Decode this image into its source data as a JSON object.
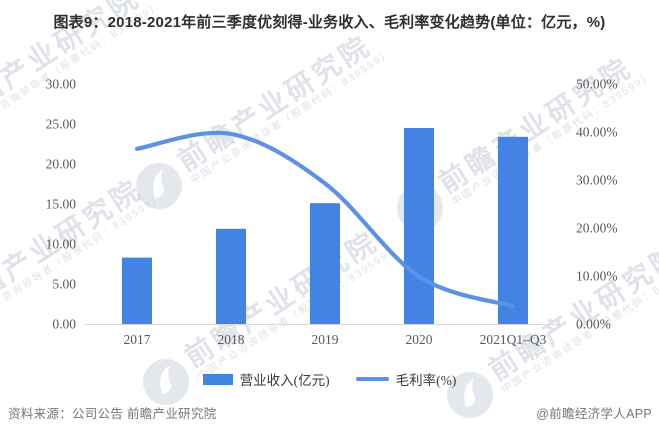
{
  "title": "图表9：2018-2021年前三季度优刻得-业务收入、毛利率变化趋势(单位：亿元，%)",
  "chart_data": {
    "type": "bar",
    "subtype": "bar-line-combo",
    "categories": [
      "2017",
      "2018",
      "2019",
      "2020",
      "2021Q1–Q3"
    ],
    "series": [
      {
        "name": "营业收入(亿元)",
        "type": "bar",
        "axis": "left",
        "color": "#4283E3",
        "values": [
          8.3,
          11.9,
          15.1,
          24.5,
          23.4
        ]
      },
      {
        "name": "毛利率(%)",
        "type": "line",
        "axis": "right",
        "color": "#5B92E8",
        "values": [
          36.5,
          39.6,
          29.3,
          9.9,
          3.7
        ]
      }
    ],
    "left_axis": {
      "min": 0,
      "max": 30,
      "step": 5,
      "tick_format": "0.00"
    },
    "right_axis": {
      "min": 0,
      "max": 50,
      "step": 10,
      "tick_format": "0.00%"
    },
    "grid": false,
    "legend_position": "bottom",
    "title": "图表9：2018-2021年前三季度优刻得-业务收入、毛利率变化趋势(单位：亿元，%)"
  },
  "legend": {
    "items": [
      {
        "label": "营业收入(亿元)",
        "swatch": "bar"
      },
      {
        "label": "毛利率(%)",
        "swatch": "line"
      }
    ]
  },
  "footer": {
    "source": "资料来源：公司公告 前瞻产业研究院",
    "credit": "@前瞻经济学人APP"
  },
  "watermark": {
    "big_text": "前瞻产业研究院",
    "small_text": "中国产业咨询领导者（股票代码：839599）"
  },
  "colors": {
    "bar": "#4283E3",
    "line": "#5B92E8",
    "title_text": "#2F2F2F",
    "axis_text": "#595959",
    "legend_text": "#3A3A3A",
    "footer_text": "#767676",
    "axis_line": "#D9D9D9",
    "watermark": "#B2BCCA"
  }
}
